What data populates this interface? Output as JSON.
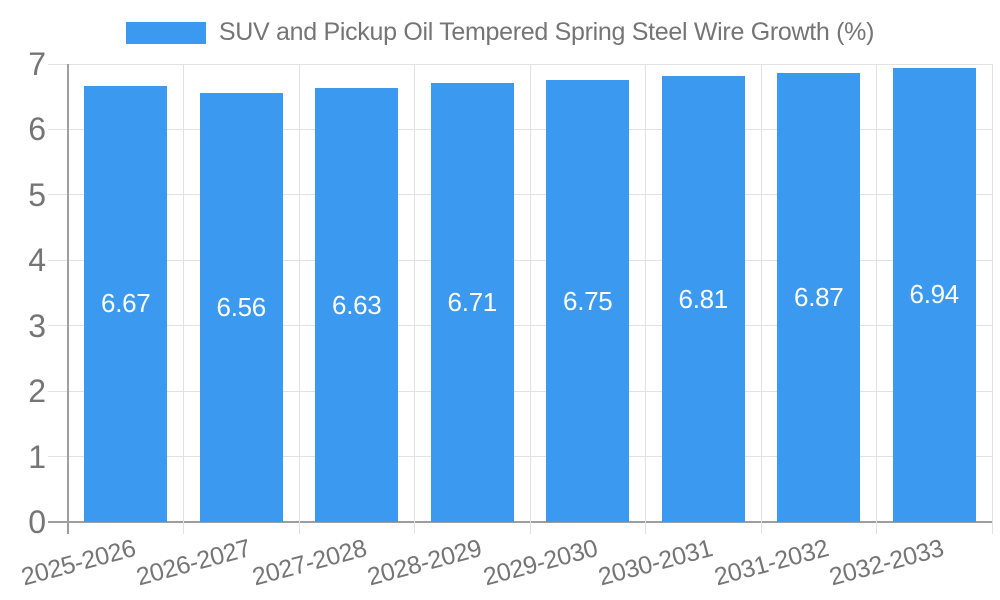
{
  "legend": {
    "label": "SUV and Pickup Oil Tempered Spring Steel Wire Growth (%)"
  },
  "colors": {
    "bar": "#3b99f0",
    "grid": "#e2e2e2",
    "axis": "#9e9e9e",
    "text": "#757575",
    "value_label": "#ffffff",
    "background": "#ffffff"
  },
  "chart_data": {
    "type": "bar",
    "title": "SUV and Pickup Oil Tempered Spring Steel Wire Growth (%)",
    "categories": [
      "2025-2026",
      "2026-2027",
      "2027-2028",
      "2028-2029",
      "2029-2030",
      "2030-2031",
      "2031-2032",
      "2032-2033"
    ],
    "series": [
      {
        "name": "SUV and Pickup Oil Tempered Spring Steel Wire Growth (%)",
        "values": [
          6.67,
          6.56,
          6.63,
          6.71,
          6.75,
          6.81,
          6.87,
          6.94
        ]
      }
    ],
    "value_labels": [
      "6.67",
      "6.56",
      "6.63",
      "6.71",
      "6.75",
      "6.81",
      "6.87",
      "6.94"
    ],
    "xlabel": "",
    "ylabel": "",
    "ylim": [
      0,
      7
    ],
    "yticks": [
      0,
      1,
      2,
      3,
      4,
      5,
      6,
      7
    ],
    "grid": true,
    "legend_position": "top",
    "x_label_rotation_deg": -15
  }
}
